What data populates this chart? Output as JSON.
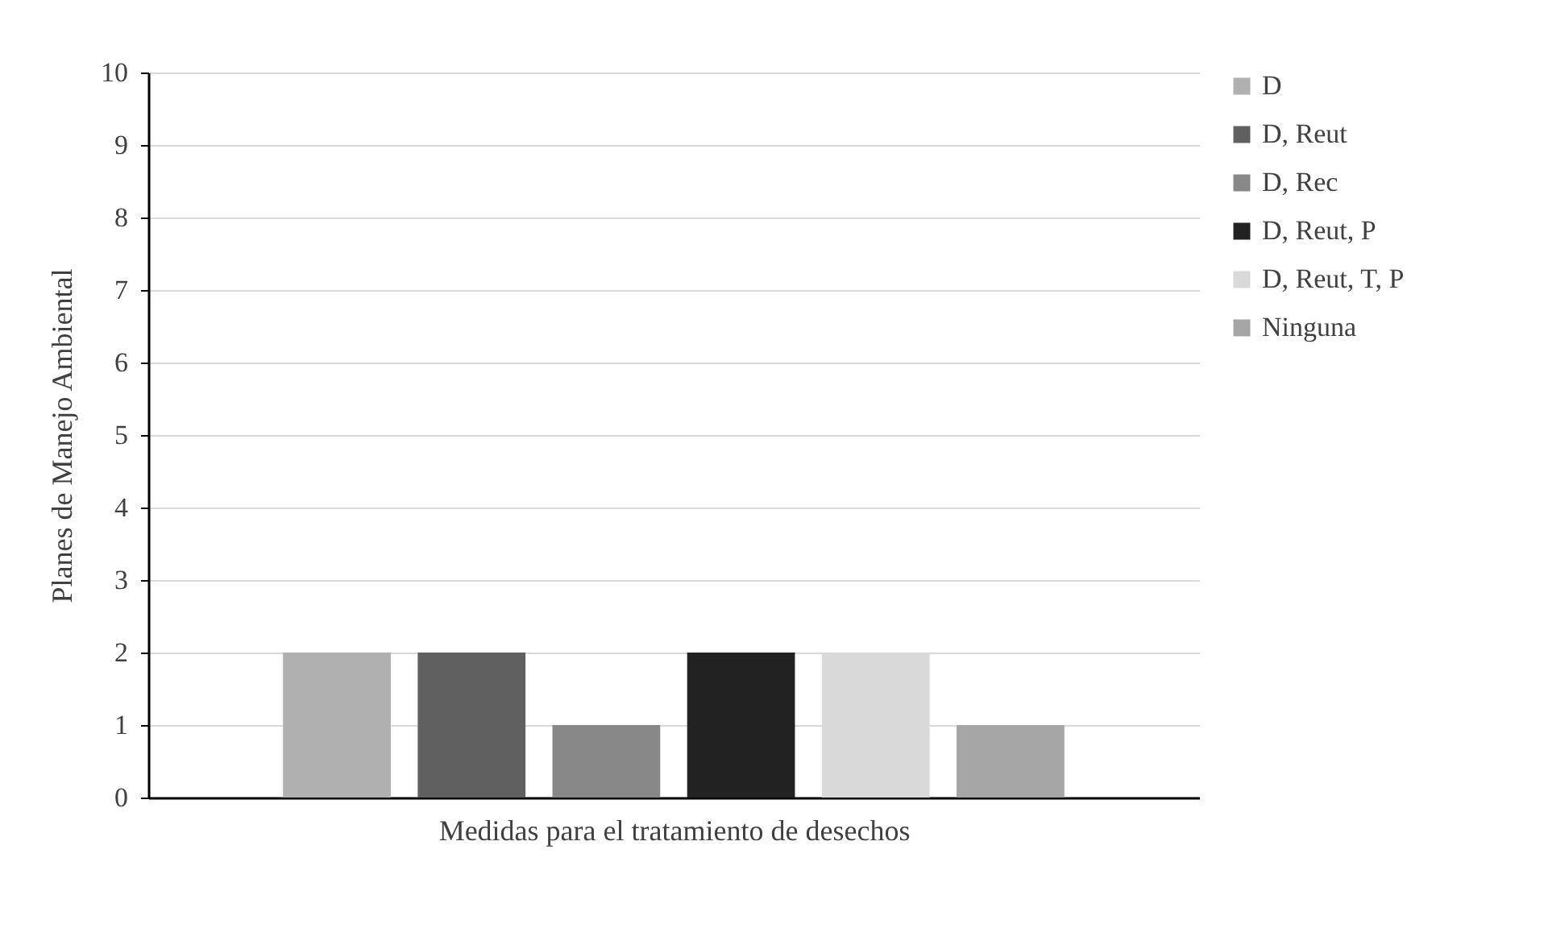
{
  "chart_data": {
    "type": "bar",
    "xlabel": "Medidas para el tratamiento de desechos",
    "ylabel": "Planes de Manejo Ambiental",
    "categories": [
      null
    ],
    "series": [
      {
        "name": "D",
        "color": "#b0b0b0",
        "values": [
          2
        ]
      },
      {
        "name": "D, Reut",
        "color": "#606060",
        "values": [
          2
        ]
      },
      {
        "name": "D, Rec",
        "color": "#888888",
        "values": [
          1
        ]
      },
      {
        "name": "D, Reut, P",
        "color": "#222222",
        "values": [
          2
        ]
      },
      {
        "name": "D, Reut, T, P",
        "color": "#d9d9d9",
        "values": [
          2
        ]
      },
      {
        "name": "Ninguna",
        "color": "#a5a5a5",
        "values": [
          1
        ]
      }
    ],
    "ylim": [
      0,
      10
    ],
    "yticks": [
      0,
      1,
      2,
      3,
      4,
      5,
      6,
      7,
      8,
      9,
      10
    ],
    "grid": "y",
    "legend": "right"
  }
}
